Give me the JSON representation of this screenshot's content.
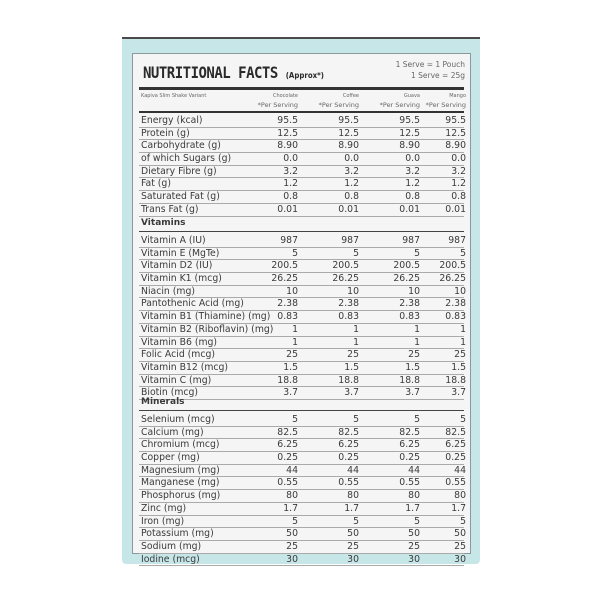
{
  "title": "NUTRITIONAL FACTS",
  "approx": "(Approx*)",
  "serve_line1": "1 Serve = 1 Pouch",
  "serve_line2": "1 Serve = 25g",
  "variant_label": "Kapiva Slim Shake Variant",
  "columns": [
    {
      "flavor": "Chocolate",
      "basis": "*Per Serving"
    },
    {
      "flavor": "Coffee",
      "basis": "*Per Serving"
    },
    {
      "flavor": "Guava",
      "basis": "*Per Serving"
    },
    {
      "flavor": "Mango",
      "basis": "*Per Serving"
    }
  ],
  "macros": [
    {
      "label": "Energy (kcal)",
      "values": [
        "95.5",
        "95.5",
        "95.5",
        "95.5"
      ]
    },
    {
      "label": "Protein (g)",
      "values": [
        "12.5",
        "12.5",
        "12.5",
        "12.5"
      ]
    },
    {
      "label": "Carbohydrate (g)",
      "values": [
        "8.90",
        "8.90",
        "8.90",
        "8.90"
      ]
    },
    {
      "label": "of which Sugars (g)",
      "values": [
        "0.0",
        "0.0",
        "0.0",
        "0.0"
      ]
    },
    {
      "label": "Dietary Fibre (g)",
      "values": [
        "3.2",
        "3.2",
        "3.2",
        "3.2"
      ]
    },
    {
      "label": "Fat (g)",
      "values": [
        "1.2",
        "1.2",
        "1.2",
        "1.2"
      ]
    },
    {
      "label": "Saturated Fat (g)",
      "values": [
        "0.8",
        "0.8",
        "0.8",
        "0.8"
      ]
    },
    {
      "label": "Trans Fat (g)",
      "values": [
        "0.01",
        "0.01",
        "0.01",
        "0.01"
      ]
    }
  ],
  "vitamins_title": "Vitamins",
  "vitamins": [
    {
      "label": "Vitamin A (IU)",
      "values": [
        "987",
        "987",
        "987",
        "987"
      ]
    },
    {
      "label": "Vitamin E (MgTe)",
      "values": [
        "5",
        "5",
        "5",
        "5"
      ]
    },
    {
      "label": "Vitamin D2 (IU)",
      "values": [
        "200.5",
        "200.5",
        "200.5",
        "200.5"
      ]
    },
    {
      "label": "Vitamin K1 (mcg)",
      "values": [
        "26.25",
        "26.25",
        "26.25",
        "26.25"
      ]
    },
    {
      "label": "Niacin (mg)",
      "values": [
        "10",
        "10",
        "10",
        "10"
      ]
    },
    {
      "label": "Pantothenic Acid (mg)",
      "values": [
        "2.38",
        "2.38",
        "2.38",
        "2.38"
      ]
    },
    {
      "label": "Vitamin B1 (Thiamine) (mg)",
      "values": [
        "0.83",
        "0.83",
        "0.83",
        "0.83"
      ]
    },
    {
      "label": "Vitamin B2 (Riboflavin) (mg)",
      "values": [
        "1",
        "1",
        "1",
        "1"
      ]
    },
    {
      "label": "Vitamin B6 (mg)",
      "values": [
        "1",
        "1",
        "1",
        "1"
      ]
    },
    {
      "label": "Folic Acid (mcg)",
      "values": [
        "25",
        "25",
        "25",
        "25"
      ]
    },
    {
      "label": "Vitamin B12 (mcg)",
      "values": [
        "1.5",
        "1.5",
        "1.5",
        "1.5"
      ]
    },
    {
      "label": "Vitamin C (mg)",
      "values": [
        "18.8",
        "18.8",
        "18.8",
        "18.8"
      ]
    },
    {
      "label": "Biotin (mcg)",
      "values": [
        "3.7",
        "3.7",
        "3.7",
        "3.7"
      ]
    }
  ],
  "minerals_title": "Minerals",
  "minerals": [
    {
      "label": "Selenium (mcg)",
      "values": [
        "5",
        "5",
        "5",
        "5"
      ]
    },
    {
      "label": "Calcium (mg)",
      "values": [
        "82.5",
        "82.5",
        "82.5",
        "82.5"
      ]
    },
    {
      "label": "Chromium (mcg)",
      "values": [
        "6.25",
        "6.25",
        "6.25",
        "6.25"
      ]
    },
    {
      "label": "Copper (mg)",
      "values": [
        "0.25",
        "0.25",
        "0.25",
        "0.25"
      ]
    },
    {
      "label": "Magnesium (mg)",
      "values": [
        "44",
        "44",
        "44",
        "44"
      ]
    },
    {
      "label": "Manganese (mg)",
      "values": [
        "0.55",
        "0.55",
        "0.55",
        "0.55"
      ]
    },
    {
      "label": "Phosphorus (mg)",
      "values": [
        "80",
        "80",
        "80",
        "80"
      ]
    },
    {
      "label": "Zinc (mg)",
      "values": [
        "1.7",
        "1.7",
        "1.7",
        "1.7"
      ]
    },
    {
      "label": "Iron (mg)",
      "values": [
        "5",
        "5",
        "5",
        "5"
      ]
    },
    {
      "label": "Potassium (mg)",
      "values": [
        "50",
        "50",
        "50",
        "50"
      ]
    },
    {
      "label": "Sodium (mg)",
      "values": [
        "25",
        "25",
        "25",
        "25"
      ]
    },
    {
      "label": "Iodine (mcg)",
      "values": [
        "30",
        "30",
        "30",
        "30"
      ]
    }
  ],
  "colors": {
    "package": "#c6e6e8",
    "panel": "#f5f5f6",
    "text": "#3a3a3a"
  }
}
